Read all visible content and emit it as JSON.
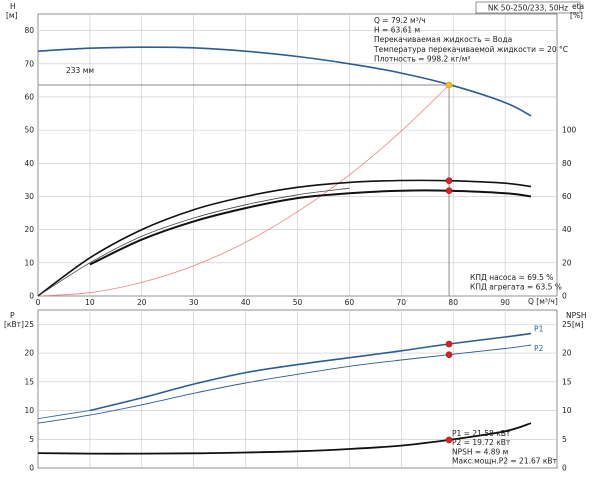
{
  "header": {
    "pump_label": "NK 50-250/233, 50Hz"
  },
  "chart_data": [
    {
      "type": "line",
      "name_role": "Q-H / efficiency chart",
      "x_label": "Q [м³/ч]",
      "y_left_label_top": "H",
      "y_left_label_unit": "[м]",
      "y_right_label_top": "eta",
      "y_right_label_unit": "[%]",
      "xlim": [
        0,
        100
      ],
      "x_ticks": [
        0,
        10,
        20,
        30,
        40,
        50,
        60,
        70,
        80,
        90
      ],
      "ylim_left": [
        0,
        85
      ],
      "y_left_ticks": [
        0,
        10,
        20,
        30,
        40,
        50,
        60,
        70,
        80
      ],
      "ylim_right": [
        0,
        170
      ],
      "y_right_ticks": [
        0,
        20,
        40,
        60,
        80,
        100
      ],
      "grid": true,
      "impeller_label": "233 мм",
      "info_lines": [
        "Q = 79.2 м³/ч",
        "H = 63.61 м",
        "Перекачиваемая жидкость = Вода",
        "Температура перекачиваемой жидкости = 20 °C",
        "Плотность = 998.2 кг/м³"
      ],
      "efficiency_lines": [
        "КПД насоса = 69.5 %",
        "КПД агрегата = 63.5 %"
      ],
      "duty_point": {
        "q": 79.2,
        "h": 63.61
      },
      "series": [
        {
          "key": "h_curve",
          "color": "#2a5d95",
          "x": [
            0,
            10,
            20,
            30,
            40,
            50,
            60,
            70,
            80,
            90,
            95
          ],
          "y": [
            73.8,
            74.7,
            75.0,
            74.8,
            73.8,
            72.2,
            70.0,
            67.2,
            63.4,
            58.3,
            54.3
          ]
        },
        {
          "key": "system_curve",
          "color": "#f08080",
          "x": [
            0,
            10,
            20,
            30,
            40,
            50,
            60,
            70,
            79.2
          ],
          "y": [
            0,
            1.0,
            4.1,
            9.1,
            16.2,
            25.4,
            36.5,
            49.7,
            63.61
          ]
        },
        {
          "key": "eta_pump",
          "color": "#111111",
          "axis": "right",
          "x": [
            0,
            10,
            20,
            30,
            40,
            50,
            60,
            70,
            79.2,
            90,
            95
          ],
          "y": [
            0,
            23,
            40,
            52,
            60,
            65.5,
            68.5,
            69.6,
            69.5,
            68,
            66
          ]
        },
        {
          "key": "eta_unit",
          "color": "#111111",
          "axis": "right",
          "x": [
            10,
            20,
            30,
            40,
            50,
            60,
            70,
            79.2,
            90,
            95
          ],
          "y": [
            19,
            34,
            45,
            53,
            59,
            62,
            63.5,
            63.5,
            62,
            60
          ]
        },
        {
          "key": "eta_thin",
          "color": "#444444",
          "axis": "right",
          "x": [
            0,
            10,
            20,
            30,
            40,
            50,
            60
          ],
          "y": [
            0,
            20,
            36,
            47,
            55,
            61,
            65
          ]
        }
      ],
      "markers": [
        {
          "x": 79.2,
          "y": 63.61,
          "axis": "left",
          "color": "#f0c020"
        },
        {
          "x": 79.2,
          "y": 69.5,
          "axis": "right",
          "color": "#e02020"
        },
        {
          "x": 79.2,
          "y": 63.5,
          "axis": "right",
          "color": "#e02020"
        }
      ]
    },
    {
      "type": "line",
      "name_role": "power / NPSH chart",
      "x_label": "",
      "y_left_label_top": "P",
      "y_left_label_unit": "[кВт]",
      "y_right_label_top": "NPSH",
      "y_right_label_unit": "[м]",
      "xlim": [
        0,
        100
      ],
      "ylim_left": [
        0,
        27.5
      ],
      "y_left_ticks": [
        0,
        5,
        10,
        15,
        20,
        25
      ],
      "ylim_right": [
        0,
        27.5
      ],
      "y_right_ticks": [
        0,
        5,
        10,
        15,
        20,
        25
      ],
      "grid": true,
      "info_lines": [
        "P1 = 21.58 кВт",
        "P2 = 19.72 кВт",
        "NPSH = 4.89 м",
        "Макс.мощн.P2 = 21.67 кВт"
      ],
      "series": [
        {
          "key": "p1",
          "name": "P1",
          "color": "#2a5d95",
          "x": [
            10,
            20,
            30,
            40,
            50,
            60,
            70,
            79.2,
            90,
            95
          ],
          "y": [
            10.0,
            12.2,
            14.6,
            16.6,
            18.0,
            19.2,
            20.4,
            21.58,
            22.8,
            23.4
          ]
        },
        {
          "key": "p1_low",
          "color": "#2a5d95",
          "x": [
            0,
            10
          ],
          "y": [
            8.6,
            10.0
          ]
        },
        {
          "key": "p2",
          "name": "P2",
          "color": "#2a5d95",
          "x": [
            0,
            10,
            20,
            30,
            40,
            50,
            60,
            70,
            79.2,
            90,
            95
          ],
          "y": [
            7.8,
            9.2,
            11.0,
            13.0,
            14.8,
            16.3,
            17.7,
            18.8,
            19.72,
            20.8,
            21.4
          ]
        },
        {
          "key": "npsh",
          "color": "#111111",
          "axis": "right",
          "x": [
            0,
            10,
            20,
            30,
            40,
            50,
            60,
            70,
            79.2,
            90,
            95
          ],
          "y": [
            2.6,
            2.5,
            2.5,
            2.55,
            2.7,
            2.9,
            3.3,
            3.9,
            4.89,
            6.4,
            7.8
          ]
        }
      ],
      "markers": [
        {
          "x": 79.2,
          "y": 21.58,
          "axis": "left",
          "color": "#e02020"
        },
        {
          "x": 79.2,
          "y": 19.72,
          "axis": "left",
          "color": "#e02020"
        },
        {
          "x": 79.2,
          "y": 4.89,
          "axis": "right",
          "color": "#e02020"
        }
      ]
    }
  ]
}
